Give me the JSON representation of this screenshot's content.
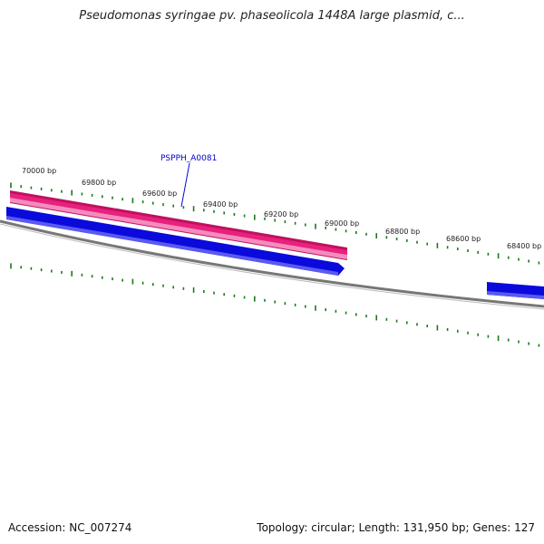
{
  "title": "Pseudomonas syringae pv. phaseolicola 1448A large plasmid, c...",
  "ruler": {
    "labels": [
      "70000 bp",
      "69800 bp",
      "69600 bp",
      "69400 bp",
      "69200 bp",
      "69000 bp",
      "68800 bp",
      "68600 bp",
      "68400 bp"
    ],
    "color": "#1a7a1a"
  },
  "features": [
    {
      "name": "PSPPH_A0081",
      "type": "forward-gene",
      "color": "#e8217e",
      "highlight": "#f48cbd",
      "label": "PSPPH_A0081"
    },
    {
      "name": "reverse-gene-1",
      "type": "reverse-gene",
      "color": "#0a0adc"
    },
    {
      "name": "reverse-gene-2",
      "type": "reverse-gene",
      "color": "#0a0adc"
    }
  ],
  "label_color": "#0000cc",
  "backbone_color": "#777777",
  "footer": {
    "accession": "Accession: NC_007274",
    "stats": "Topology: circular; Length: 131,950 bp; Genes: 127"
  }
}
